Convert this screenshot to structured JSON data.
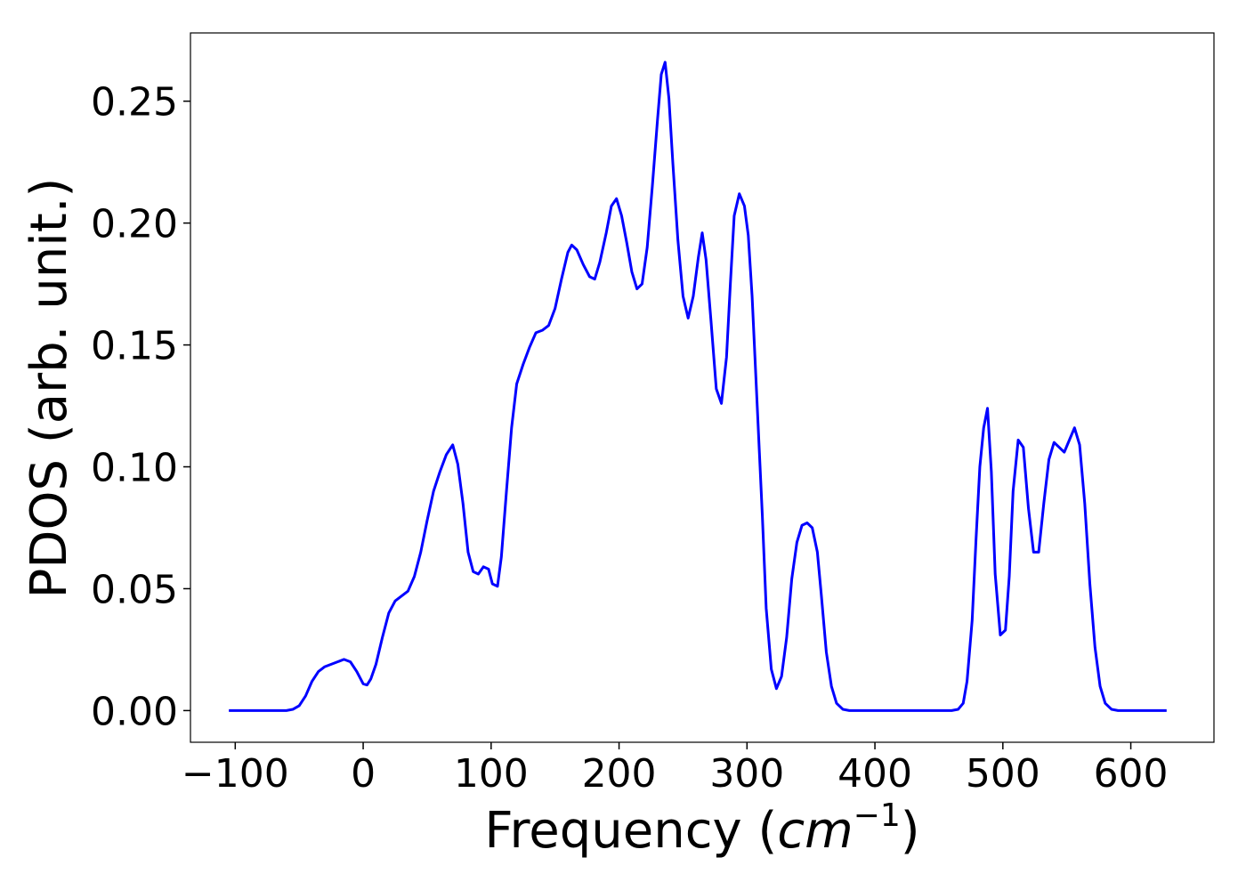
{
  "chart_data": {
    "type": "line",
    "xlabel": "Frequency (",
    "xlabel_unit_base": "cm",
    "xlabel_unit_exp": "−1",
    "xlabel_close": ")",
    "ylabel": "PDOS (arb. unit.)",
    "xlim": [
      -135,
      665
    ],
    "ylim": [
      -0.013,
      0.278
    ],
    "x_ticks": [
      -100,
      0,
      100,
      200,
      300,
      400,
      500,
      600
    ],
    "x_tick_labels": [
      "−100",
      "0",
      "100",
      "200",
      "300",
      "400",
      "500",
      "600"
    ],
    "y_ticks": [
      0.0,
      0.05,
      0.1,
      0.15,
      0.2,
      0.25
    ],
    "y_tick_labels": [
      "0.00",
      "0.05",
      "0.10",
      "0.15",
      "0.20",
      "0.25"
    ],
    "grid": false,
    "series": [
      {
        "color": "#0000ff",
        "points": [
          [
            -105,
            0.0
          ],
          [
            -60,
            0.0
          ],
          [
            -55,
            0.0005
          ],
          [
            -50,
            0.002
          ],
          [
            -45,
            0.006
          ],
          [
            -40,
            0.012
          ],
          [
            -35,
            0.016
          ],
          [
            -30,
            0.018
          ],
          [
            -25,
            0.019
          ],
          [
            -20,
            0.02
          ],
          [
            -15,
            0.021
          ],
          [
            -10,
            0.02
          ],
          [
            -5,
            0.016
          ],
          [
            0,
            0.011
          ],
          [
            3,
            0.0105
          ],
          [
            6,
            0.013
          ],
          [
            10,
            0.019
          ],
          [
            15,
            0.03
          ],
          [
            20,
            0.04
          ],
          [
            25,
            0.045
          ],
          [
            30,
            0.047
          ],
          [
            35,
            0.049
          ],
          [
            40,
            0.055
          ],
          [
            45,
            0.065
          ],
          [
            50,
            0.078
          ],
          [
            55,
            0.09
          ],
          [
            60,
            0.098
          ],
          [
            65,
            0.105
          ],
          [
            70,
            0.109
          ],
          [
            74,
            0.101
          ],
          [
            78,
            0.085
          ],
          [
            82,
            0.065
          ],
          [
            86,
            0.057
          ],
          [
            90,
            0.056
          ],
          [
            94,
            0.059
          ],
          [
            98,
            0.058
          ],
          [
            101,
            0.052
          ],
          [
            105,
            0.051
          ],
          [
            108,
            0.063
          ],
          [
            112,
            0.09
          ],
          [
            116,
            0.116
          ],
          [
            120,
            0.134
          ],
          [
            125,
            0.142
          ],
          [
            130,
            0.149
          ],
          [
            135,
            0.155
          ],
          [
            140,
            0.156
          ],
          [
            145,
            0.158
          ],
          [
            150,
            0.165
          ],
          [
            155,
            0.177
          ],
          [
            160,
            0.188
          ],
          [
            163,
            0.191
          ],
          [
            167,
            0.189
          ],
          [
            172,
            0.183
          ],
          [
            177,
            0.178
          ],
          [
            181,
            0.177
          ],
          [
            185,
            0.184
          ],
          [
            190,
            0.196
          ],
          [
            194,
            0.207
          ],
          [
            198,
            0.21
          ],
          [
            202,
            0.203
          ],
          [
            206,
            0.192
          ],
          [
            210,
            0.18
          ],
          [
            214,
            0.173
          ],
          [
            218,
            0.175
          ],
          [
            222,
            0.19
          ],
          [
            226,
            0.215
          ],
          [
            230,
            0.242
          ],
          [
            233,
            0.261
          ],
          [
            236,
            0.266
          ],
          [
            239,
            0.251
          ],
          [
            242,
            0.225
          ],
          [
            246,
            0.193
          ],
          [
            250,
            0.17
          ],
          [
            254,
            0.161
          ],
          [
            258,
            0.17
          ],
          [
            262,
            0.186
          ],
          [
            265,
            0.196
          ],
          [
            268,
            0.185
          ],
          [
            272,
            0.159
          ],
          [
            276,
            0.132
          ],
          [
            280,
            0.126
          ],
          [
            284,
            0.145
          ],
          [
            287,
            0.175
          ],
          [
            290,
            0.203
          ],
          [
            294,
            0.212
          ],
          [
            298,
            0.207
          ],
          [
            301,
            0.195
          ],
          [
            304,
            0.17
          ],
          [
            308,
            0.125
          ],
          [
            312,
            0.08
          ],
          [
            315,
            0.042
          ],
          [
            319,
            0.017
          ],
          [
            323,
            0.009
          ],
          [
            327,
            0.014
          ],
          [
            331,
            0.03
          ],
          [
            335,
            0.054
          ],
          [
            339,
            0.069
          ],
          [
            343,
            0.076
          ],
          [
            347,
            0.077
          ],
          [
            351,
            0.075
          ],
          [
            355,
            0.065
          ],
          [
            358,
            0.048
          ],
          [
            362,
            0.024
          ],
          [
            366,
            0.01
          ],
          [
            370,
            0.003
          ],
          [
            375,
            0.0005
          ],
          [
            380,
            0.0
          ],
          [
            460,
            0.0
          ],
          [
            465,
            0.0005
          ],
          [
            469,
            0.003
          ],
          [
            472,
            0.012
          ],
          [
            476,
            0.037
          ],
          [
            479,
            0.07
          ],
          [
            482,
            0.1
          ],
          [
            485,
            0.116
          ],
          [
            488,
            0.124
          ],
          [
            491,
            0.098
          ],
          [
            494,
            0.056
          ],
          [
            498,
            0.031
          ],
          [
            502,
            0.033
          ],
          [
            505,
            0.055
          ],
          [
            508,
            0.09
          ],
          [
            512,
            0.111
          ],
          [
            516,
            0.108
          ],
          [
            520,
            0.083
          ],
          [
            524,
            0.065
          ],
          [
            528,
            0.065
          ],
          [
            532,
            0.085
          ],
          [
            536,
            0.103
          ],
          [
            540,
            0.11
          ],
          [
            544,
            0.108
          ],
          [
            548,
            0.106
          ],
          [
            552,
            0.111
          ],
          [
            556,
            0.116
          ],
          [
            560,
            0.109
          ],
          [
            564,
            0.085
          ],
          [
            568,
            0.052
          ],
          [
            572,
            0.026
          ],
          [
            576,
            0.01
          ],
          [
            580,
            0.003
          ],
          [
            585,
            0.0005
          ],
          [
            590,
            0.0
          ],
          [
            628,
            0.0
          ]
        ]
      }
    ]
  }
}
